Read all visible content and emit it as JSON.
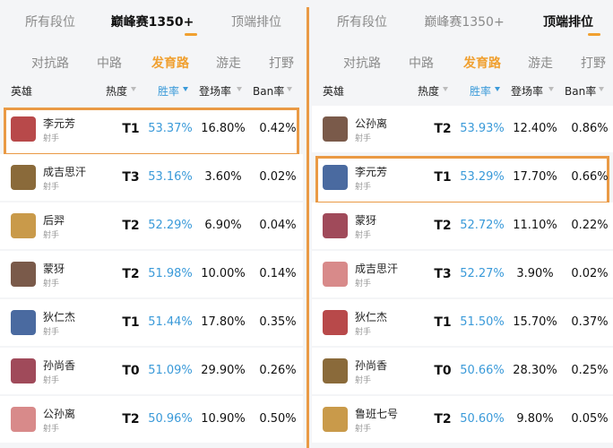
{
  "panels": [
    {
      "tabs": [
        {
          "label": "所有段位",
          "active": false
        },
        {
          "label": "巅峰赛1350+",
          "active": true
        },
        {
          "label": "顶端排位",
          "active": false
        }
      ],
      "subtabs": [
        {
          "label": "对抗路",
          "active": false
        },
        {
          "label": "中路",
          "active": false
        },
        {
          "label": "发育路",
          "active": true
        },
        {
          "label": "游走",
          "active": false
        },
        {
          "label": "打野",
          "active": false
        }
      ],
      "columns": [
        "英雄",
        "热度",
        "胜率",
        "登场率",
        "Ban率"
      ],
      "rows": [
        {
          "name": "李元芳",
          "role": "射手",
          "tier": "T1",
          "win": "53.37%",
          "appear": "16.80%",
          "ban": "0.42%",
          "highlight": true
        },
        {
          "name": "成吉思汗",
          "role": "射手",
          "tier": "T3",
          "win": "53.16%",
          "appear": "3.60%",
          "ban": "0.02%",
          "highlight": false
        },
        {
          "name": "后羿",
          "role": "射手",
          "tier": "T2",
          "win": "52.29%",
          "appear": "6.90%",
          "ban": "0.04%",
          "highlight": false
        },
        {
          "name": "蒙犽",
          "role": "射手",
          "tier": "T2",
          "win": "51.98%",
          "appear": "10.00%",
          "ban": "0.14%",
          "highlight": false
        },
        {
          "name": "狄仁杰",
          "role": "射手",
          "tier": "T1",
          "win": "51.44%",
          "appear": "17.80%",
          "ban": "0.35%",
          "highlight": false
        },
        {
          "name": "孙尚香",
          "role": "射手",
          "tier": "T0",
          "win": "51.09%",
          "appear": "29.90%",
          "ban": "0.26%",
          "highlight": false
        },
        {
          "name": "公孙离",
          "role": "射手",
          "tier": "T2",
          "win": "50.96%",
          "appear": "10.90%",
          "ban": "0.50%",
          "highlight": false
        }
      ]
    },
    {
      "tabs": [
        {
          "label": "所有段位",
          "active": false
        },
        {
          "label": "巅峰赛1350+",
          "active": false
        },
        {
          "label": "顶端排位",
          "active": true
        }
      ],
      "subtabs": [
        {
          "label": "对抗路",
          "active": false
        },
        {
          "label": "中路",
          "active": false
        },
        {
          "label": "发育路",
          "active": true
        },
        {
          "label": "游走",
          "active": false
        },
        {
          "label": "打野",
          "active": false
        }
      ],
      "columns": [
        "英雄",
        "热度",
        "胜率",
        "登场率",
        "Ban率"
      ],
      "rows": [
        {
          "name": "公孙离",
          "role": "射手",
          "tier": "T2",
          "win": "53.93%",
          "appear": "12.40%",
          "ban": "0.86%",
          "highlight": false
        },
        {
          "name": "李元芳",
          "role": "射手",
          "tier": "T1",
          "win": "53.29%",
          "appear": "17.70%",
          "ban": "0.66%",
          "highlight": true
        },
        {
          "name": "蒙犽",
          "role": "射手",
          "tier": "T2",
          "win": "52.72%",
          "appear": "11.10%",
          "ban": "0.22%",
          "highlight": false
        },
        {
          "name": "成吉思汗",
          "role": "射手",
          "tier": "T3",
          "win": "52.27%",
          "appear": "3.90%",
          "ban": "0.02%",
          "highlight": false
        },
        {
          "name": "狄仁杰",
          "role": "射手",
          "tier": "T1",
          "win": "51.50%",
          "appear": "15.70%",
          "ban": "0.37%",
          "highlight": false
        },
        {
          "name": "孙尚香",
          "role": "射手",
          "tier": "T0",
          "win": "50.66%",
          "appear": "28.30%",
          "ban": "0.25%",
          "highlight": false
        },
        {
          "name": "鲁班七号",
          "role": "射手",
          "tier": "T2",
          "win": "50.60%",
          "appear": "9.80%",
          "ban": "0.05%",
          "highlight": false
        }
      ]
    }
  ]
}
